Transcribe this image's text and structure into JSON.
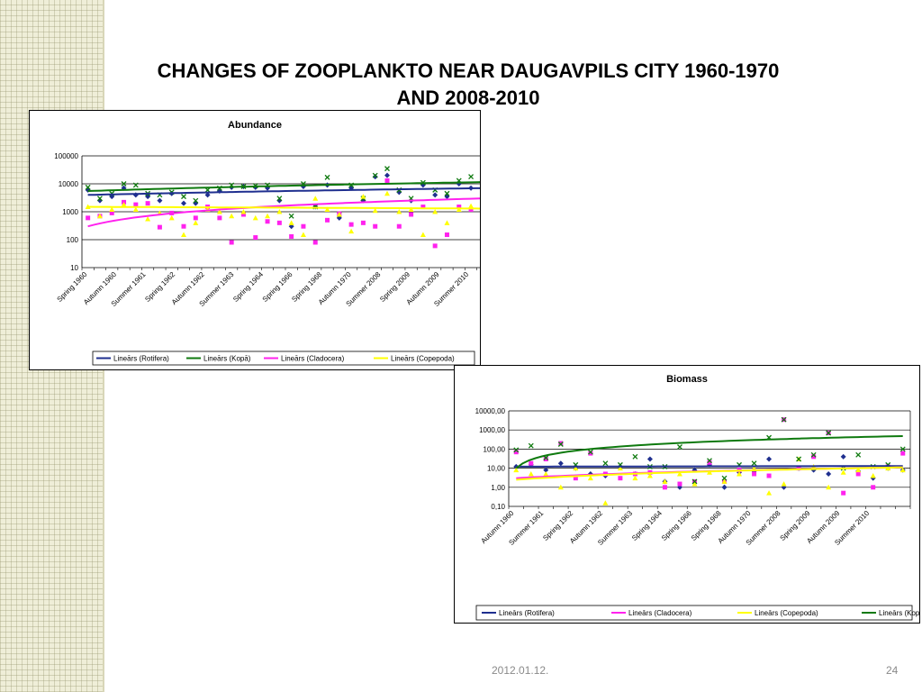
{
  "slide": {
    "title_line1": "CHANGES OF ZOOPLANKTO NEAR  DAUGAVPILS CITY 1960-1970",
    "title_line2": "AND 2008-2010",
    "date": "2012.01.12.",
    "page": "24"
  },
  "colors": {
    "rotifera": "#1f2f8f",
    "kopa": "#0f7a0f",
    "cladocera": "#ff22ee",
    "copepoda": "#ffff00",
    "pattern": "#efeed8"
  },
  "chart_data": [
    {
      "type": "scatter",
      "title": "Abundance",
      "y_scale": "log",
      "ylim": [
        10,
        100000
      ],
      "y_ticks": [
        "10",
        "100",
        "1000",
        "10000",
        "100000"
      ],
      "x_labels": [
        "Spring  1960",
        "Autumn 1960",
        "Summer 1961",
        "Spring  1962",
        "Autumn 1962",
        "Summer 1963",
        "Spring  1964",
        "Spring  1966",
        "Spring  1968",
        "Autumn 1970",
        "Summer 2008",
        "Spring  2009",
        "Autumn 2009",
        "Summer 2010"
      ],
      "n_points": 34,
      "grid": true,
      "legend_position": "bottom",
      "series": [
        {
          "name": "Rotifera",
          "marker": "diamond",
          "values": [
            6000,
            2500,
            3500,
            7000,
            4000,
            3500,
            2500,
            4500,
            2000,
            2000,
            4000,
            5500,
            7500,
            8000,
            7500,
            7000,
            2500,
            300,
            8000,
            1500,
            9000,
            600,
            7000,
            2500,
            18000,
            20000,
            5000,
            2500,
            9000,
            4000,
            3500,
            10000,
            7000,
            2500
          ],
          "trend": [
            4000,
            7000
          ]
        },
        {
          "name": "Kopā",
          "marker": "x",
          "values": [
            7500,
            3000,
            4500,
            10000,
            9000,
            4500,
            4000,
            5000,
            3500,
            2500,
            6000,
            7000,
            9000,
            8000,
            8500,
            9000,
            3000,
            700,
            10000,
            1500,
            17000,
            800,
            9000,
            3000,
            20000,
            35000,
            6000,
            3000,
            11000,
            6000,
            4500,
            13000,
            18000,
            4000
          ],
          "trend": [
            5500,
            11500
          ]
        },
        {
          "name": "Cladocera",
          "marker": "square",
          "values": [
            600,
            700,
            900,
            2200,
            1800,
            2000,
            280,
            900,
            300,
            600,
            1500,
            600,
            80,
            800,
            120,
            450,
            400,
            130,
            300,
            80,
            500,
            850,
            350,
            400,
            300,
            13000,
            300,
            800,
            1500,
            60,
            150,
            1500,
            1200,
            800
          ],
          "trend": [
            300,
            3000
          ]
        },
        {
          "name": "Copepoda",
          "marker": "triangle",
          "values": [
            1500,
            700,
            1200,
            1800,
            1200,
            550,
            900,
            600,
            150,
            400,
            1200,
            1000,
            700,
            1000,
            600,
            700,
            1000,
            400,
            150,
            3000,
            1200,
            800,
            200,
            3500,
            1100,
            4500,
            1000,
            1200,
            150,
            1000,
            400,
            1200,
            1600,
            1000
          ],
          "trend": [
            1500,
            1300
          ]
        }
      ]
    },
    {
      "type": "scatter",
      "title": "Biomass",
      "y_scale": "log",
      "ylim": [
        0.1,
        10000
      ],
      "y_ticks": [
        "0,10",
        "1,00",
        "10,00",
        "100,00",
        "1000,00",
        "10000,00"
      ],
      "x_labels": [
        "Autumn 1960",
        "Summer 1961",
        "Spring  1962",
        "Autumn 1962",
        "Summer 1963",
        "Spring  1964",
        "Spring  1966",
        "Spring  1968",
        "Autumn 1970",
        "Summer 2008",
        "Spring   2009",
        "Autumn 2009",
        "Summer 2010"
      ],
      "n_points": 27,
      "grid": true,
      "legend_position": "bottom",
      "series": [
        {
          "name": "Rotifera",
          "marker": "diamond",
          "values": [
            12,
            15,
            8,
            18,
            10,
            5,
            4,
            12,
            5,
            30,
            2,
            1,
            8,
            15,
            1,
            6,
            7,
            30,
            1,
            10,
            8,
            5,
            40,
            7,
            3,
            10,
            8
          ],
          "trend": [
            12,
            13
          ]
        },
        {
          "name": "Cladocera",
          "marker": "square",
          "values": [
            70,
            18,
            30,
            200,
            3,
            60,
            5,
            3,
            5,
            6,
            1,
            1.5,
            2,
            20,
            2,
            8,
            5,
            4,
            3500,
            10,
            40,
            700,
            0.5,
            5,
            1,
            12,
            60
          ],
          "trend": [
            3,
            11
          ]
        },
        {
          "name": "Copepoda",
          "marker": "triangle",
          "values": [
            8,
            5,
            5,
            1,
            10,
            3,
            0.15,
            10,
            3,
            4,
            2,
            5,
            1.5,
            6,
            2,
            5,
            10,
            0.5,
            1.5,
            30,
            12,
            1,
            6,
            8,
            4,
            10,
            8
          ],
          "trend": [
            2.5,
            11
          ]
        },
        {
          "name": "Kopā",
          "marker": "x",
          "values": [
            90,
            150,
            35,
            180,
            15,
            70,
            18,
            15,
            40,
            12,
            12,
            130,
            2,
            25,
            3,
            15,
            18,
            400,
            3500,
            30,
            50,
            700,
            10,
            50,
            12,
            15,
            100
          ],
          "trend": [
            10,
            480
          ]
        }
      ]
    }
  ],
  "legends": {
    "abundance": [
      "Lineārs (Rotifera)",
      "Lineārs (Kopā)",
      "Lineārs (Cladocera)",
      "Lineārs (Copepoda)"
    ],
    "biomass": [
      "Lineārs (Rotifera)",
      "Lineārs (Cladocera)",
      "Lineārs (Copepoda)",
      "Lineārs (Kopā)"
    ]
  }
}
